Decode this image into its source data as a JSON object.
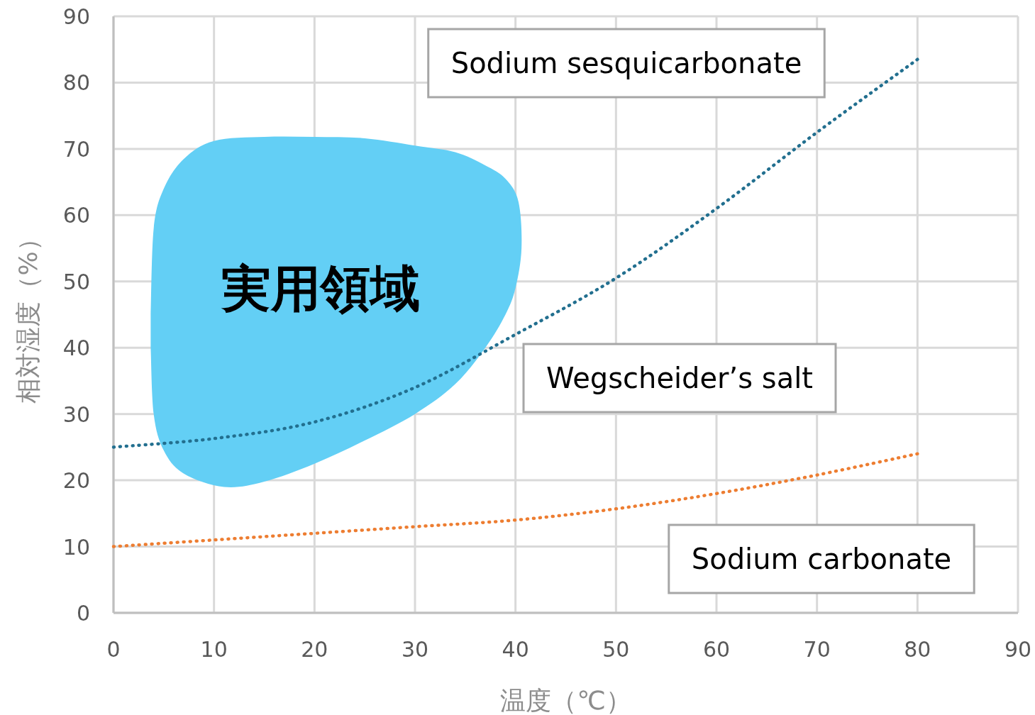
{
  "chart_data": {
    "type": "line",
    "xlabel": "温度（℃）",
    "ylabel": "相対湿度（%）",
    "xlim": [
      0,
      90
    ],
    "ylim": [
      0,
      90
    ],
    "xticks": [
      0,
      10,
      20,
      30,
      40,
      50,
      60,
      70,
      80,
      90
    ],
    "yticks": [
      0,
      10,
      20,
      30,
      40,
      50,
      60,
      70,
      80,
      90
    ],
    "grid": true,
    "line_style": "dotted",
    "series": [
      {
        "type": "area",
        "color": "#63cff5",
        "x": [
          3.7,
          4,
          5,
          7,
          10,
          15,
          20,
          25,
          30,
          34,
          37,
          39,
          40.3,
          40.6,
          40,
          39,
          37,
          34,
          30,
          25,
          20,
          15,
          11,
          7,
          5,
          4,
          3.7
        ],
        "values": [
          45,
          58,
          64,
          68.5,
          71.2,
          71.8,
          71.8,
          71.6,
          70.5,
          69.5,
          67.5,
          65.5,
          62,
          55,
          49,
          45,
          40,
          34.5,
          30,
          26,
          22.5,
          19.8,
          19,
          21,
          24.5,
          30,
          40
        ]
      },
      {
        "color": "#226f8f",
        "x": [
          0,
          10,
          20,
          30,
          40,
          50,
          60,
          70,
          80
        ],
        "values": [
          25,
          26.3,
          28.8,
          34,
          42,
          50.5,
          61,
          72.5,
          83.5
        ]
      },
      {
        "color": "#ed7d31",
        "x": [
          0,
          10,
          20,
          30,
          40,
          50,
          60,
          70,
          80
        ],
        "values": [
          10,
          11,
          12,
          13,
          14,
          15.7,
          18,
          20.8,
          24
        ]
      }
    ],
    "annotations": [
      "実用領域",
      "Sodium sesquicarbonate",
      "Wegscheider’s salt",
      "Sodium carbonate"
    ]
  }
}
